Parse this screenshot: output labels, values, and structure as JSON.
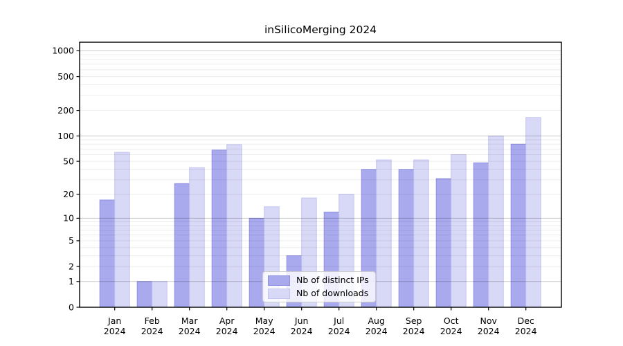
{
  "figure": {
    "background": "#ffffff"
  },
  "chart_data": {
    "type": "bar",
    "title": "inSilicoMerging 2024",
    "categories": [
      "Jan 2024",
      "Feb 2024",
      "Mar 2024",
      "Apr 2024",
      "May 2024",
      "Jun 2024",
      "Jul 2024",
      "Aug 2024",
      "Sep 2024",
      "Oct 2024",
      "Nov 2024",
      "Dec 2024"
    ],
    "x_months": [
      "Jan",
      "Feb",
      "Mar",
      "Apr",
      "May",
      "Jun",
      "Jul",
      "Aug",
      "Sep",
      "Oct",
      "Nov",
      "Dec"
    ],
    "x_year": "2024",
    "series": [
      {
        "name": "Nb of distinct IPs",
        "color": "#a9a9ee",
        "edge_color": "#9090e0",
        "values": [
          17,
          1,
          27,
          68,
          10,
          3,
          12,
          40,
          40,
          31,
          48,
          80
        ]
      },
      {
        "name": "Nb of downloads",
        "color": "#d8d8f7",
        "edge_color": "#c3c3ef",
        "values": [
          64,
          1,
          42,
          79,
          14,
          18,
          20,
          52,
          52,
          60,
          100,
          165
        ]
      }
    ],
    "xlabel": "",
    "ylabel": "",
    "y_scale": "log10(value+1)",
    "y_ticks": [
      0,
      1,
      2,
      5,
      10,
      20,
      50,
      100,
      200,
      500,
      1000
    ],
    "y_major_gridlines": [
      1,
      10,
      100,
      1000
    ],
    "y_minor_gridlines": [
      2,
      3,
      4,
      5,
      6,
      7,
      8,
      9,
      20,
      30,
      40,
      50,
      60,
      70,
      80,
      90,
      200,
      300,
      400,
      500,
      600,
      700,
      800,
      900
    ],
    "ylim": [
      0,
      1250
    ],
    "grid": true,
    "legend_position": "lower center"
  },
  "legend": {
    "items": [
      {
        "label": "Nb of distinct IPs",
        "color": "#a9a9ee",
        "edge_color": "#9090e0"
      },
      {
        "label": "Nb of downloads",
        "color": "#d8d8f7",
        "edge_color": "#c3c3ef"
      }
    ]
  },
  "colors": {
    "axis": "#000000",
    "text": "#000000",
    "grid_minor": "rgba(0,0,0,0.075)",
    "grid_major": "rgba(0,0,0,0.215)",
    "legend_border": "#cccccc",
    "legend_background": "rgba(255,255,255,0.8)"
  }
}
